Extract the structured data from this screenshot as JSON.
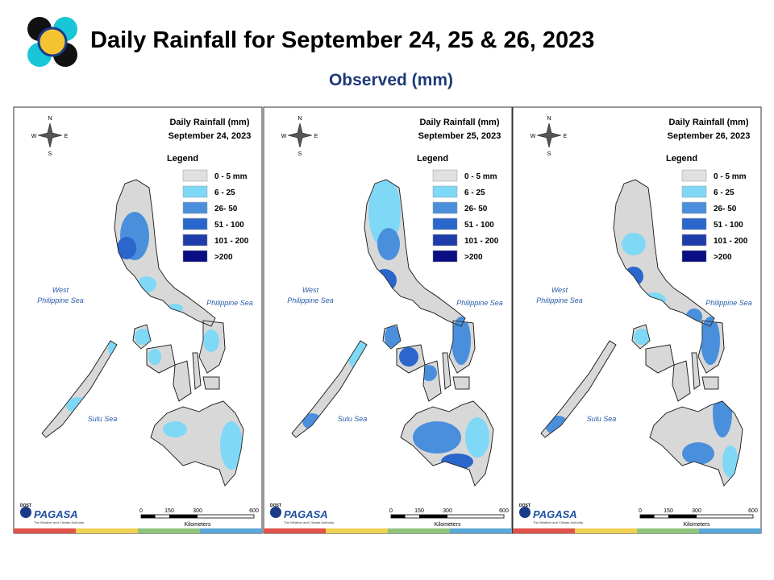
{
  "header": {
    "title": "Daily Rainfall for September 24, 25 & 26, 2023",
    "subtitle": "Observed (mm)"
  },
  "panels": [
    {
      "heading": "Daily Rainfall (mm)",
      "date": "September 24, 2023"
    },
    {
      "heading": "Daily Rainfall (mm)",
      "date": "September 25, 2023"
    },
    {
      "heading": "Daily Rainfall (mm)",
      "date": "September 26, 2023"
    }
  ],
  "legend": {
    "title": "Legend",
    "items": [
      {
        "label": "0 - 5 mm",
        "color": "#e0e0e0"
      },
      {
        "label": "6 - 25",
        "color": "#7fd8f6"
      },
      {
        "label": "26- 50",
        "color": "#4a8fdc"
      },
      {
        "label": "51 - 100",
        "color": "#2a66cc"
      },
      {
        "label": "101 - 200",
        "color": "#1e3caa"
      },
      {
        "label": ">200",
        "color": "#0a0e82"
      }
    ]
  },
  "seas": {
    "west_line1": "West",
    "west_line2": "Philippine Sea",
    "east": "Philippine Sea",
    "south": "Sulu Sea"
  },
  "compass": {
    "n": "N",
    "s": "S",
    "e": "E",
    "w": "W"
  },
  "scale": {
    "ticks": [
      "0",
      "150",
      "300",
      "600"
    ],
    "unit": "Kilometers"
  },
  "logo": {
    "agency": "DOST",
    "name": "PAGASA",
    "tagline": "The Weather and Climate Authority"
  }
}
